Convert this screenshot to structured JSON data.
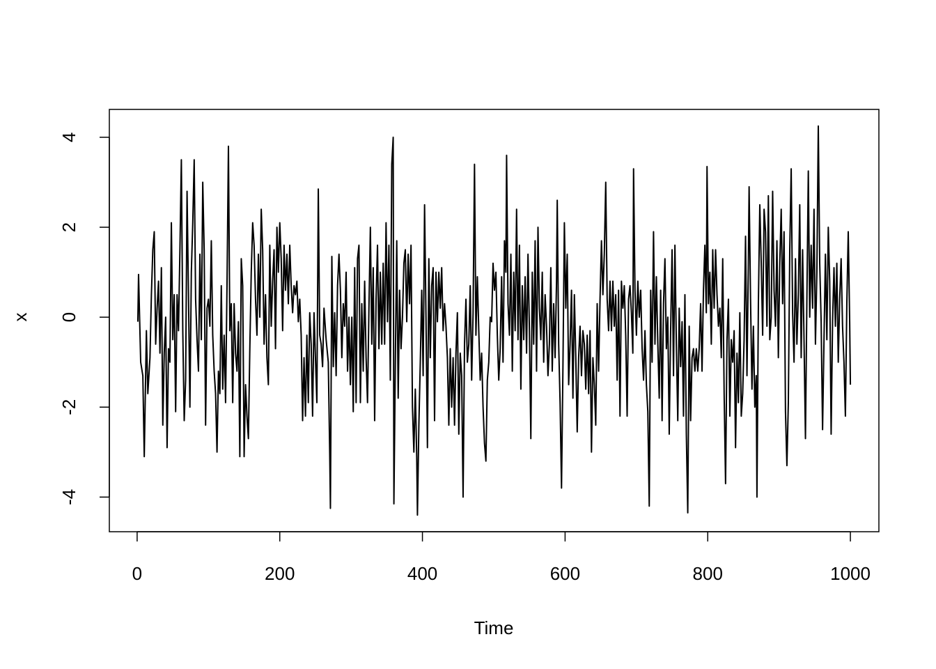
{
  "chart_data": {
    "type": "line",
    "xlabel": "Time",
    "ylabel": "x",
    "color": "#000000",
    "xlim": [
      -38.96,
      1039.96
    ],
    "ylim": [
      -4.77,
      4.62
    ],
    "xticks": [
      0,
      200,
      400,
      600,
      800,
      1000
    ],
    "yticks": [
      -4,
      -2,
      0,
      2,
      4
    ],
    "x": [
      1,
      2,
      5,
      8,
      10,
      13,
      15,
      18,
      20,
      22,
      24,
      26,
      28,
      30,
      32,
      34,
      36,
      38,
      40,
      42,
      44,
      46,
      48,
      50,
      52,
      54,
      56,
      58,
      60,
      62,
      64,
      66,
      68,
      70,
      72,
      74,
      76,
      78,
      80,
      82,
      84,
      86,
      88,
      90,
      92,
      94,
      96,
      98,
      100,
      102,
      104,
      106,
      108,
      110,
      112,
      114,
      116,
      118,
      120,
      122,
      124,
      126,
      128,
      130,
      132,
      134,
      136,
      138,
      140,
      142,
      144,
      146,
      148,
      150,
      152,
      154,
      156,
      158,
      160,
      162,
      164,
      166,
      168,
      170,
      172,
      174,
      176,
      178,
      180,
      182,
      184,
      186,
      188,
      190,
      192,
      194,
      196,
      198,
      200,
      202,
      204,
      206,
      208,
      210,
      212,
      214,
      216,
      218,
      220,
      222,
      224,
      226,
      228,
      230,
      232,
      234,
      236,
      238,
      240,
      242,
      244,
      246,
      248,
      250,
      252,
      254,
      256,
      258,
      260,
      262,
      265,
      268,
      270,
      271,
      273,
      275,
      277,
      279,
      281,
      283,
      285,
      287,
      289,
      291,
      293,
      295,
      297,
      299,
      301,
      303,
      305,
      307,
      309,
      311,
      313,
      315,
      317,
      319,
      321,
      323,
      325,
      327,
      329,
      331,
      333,
      335,
      337,
      339,
      341,
      343,
      345,
      347,
      349,
      351,
      353,
      355,
      357,
      359,
      360,
      362,
      364,
      366,
      368,
      370,
      372,
      374,
      376,
      378,
      380,
      382,
      384,
      386,
      388,
      390,
      392,
      393,
      395,
      397,
      399,
      401,
      403,
      405,
      407,
      409,
      411,
      413,
      415,
      417,
      419,
      421,
      423,
      425,
      427,
      429,
      431,
      433,
      435,
      437,
      439,
      441,
      443,
      445,
      447,
      449,
      451,
      453,
      455,
      457,
      459,
      461,
      463,
      465,
      467,
      469,
      471,
      473,
      475,
      477,
      479,
      481,
      483,
      485,
      487,
      489,
      491,
      493,
      495,
      497,
      499,
      501,
      503,
      505,
      507,
      509,
      511,
      513,
      515,
      517,
      518,
      520,
      522,
      524,
      526,
      528,
      530,
      532,
      534,
      536,
      538,
      540,
      542,
      544,
      546,
      548,
      550,
      552,
      554,
      556,
      558,
      560,
      562,
      564,
      566,
      568,
      570,
      572,
      574,
      576,
      578,
      580,
      582,
      584,
      586,
      588,
      589,
      591,
      593,
      595,
      597,
      599,
      601,
      603,
      605,
      607,
      609,
      611,
      613,
      615,
      617,
      619,
      621,
      623,
      625,
      627,
      629,
      631,
      633,
      635,
      637,
      639,
      641,
      643,
      645,
      647,
      649,
      651,
      653,
      655,
      657,
      659,
      661,
      663,
      665,
      667,
      669,
      671,
      673,
      675,
      677,
      679,
      681,
      683,
      685,
      687,
      689,
      691,
      693,
      695,
      696,
      698,
      700,
      702,
      704,
      706,
      708,
      710,
      712,
      714,
      716,
      718,
      720,
      722,
      724,
      726,
      728,
      730,
      732,
      734,
      736,
      738,
      740,
      742,
      744,
      746,
      748,
      750,
      752,
      754,
      756,
      758,
      760,
      762,
      764,
      766,
      768,
      770,
      772,
      774,
      776,
      778,
      780,
      782,
      784,
      786,
      788,
      790,
      792,
      794,
      796,
      798,
      799,
      801,
      803,
      805,
      807,
      809,
      811,
      813,
      815,
      817,
      819,
      821,
      823,
      825,
      827,
      829,
      831,
      833,
      835,
      837,
      839,
      841,
      843,
      845,
      847,
      849,
      851,
      853,
      855,
      857,
      858,
      860,
      862,
      864,
      866,
      868,
      869,
      871,
      873,
      875,
      877,
      879,
      881,
      883,
      885,
      887,
      889,
      891,
      893,
      895,
      897,
      899,
      901,
      903,
      905,
      907,
      909,
      911,
      913,
      915,
      917,
      919,
      921,
      923,
      925,
      927,
      929,
      931,
      933,
      935,
      937,
      939,
      941,
      943,
      945,
      947,
      949,
      951,
      953,
      955,
      957,
      959,
      961,
      963,
      965,
      967,
      969,
      971,
      973,
      975,
      977,
      979,
      981,
      983,
      985,
      987,
      989,
      991,
      993,
      995,
      997,
      999,
      1000
    ],
    "values": [
      -0.1,
      0.95,
      -1.0,
      -1.3,
      -3.1,
      -0.3,
      -1.7,
      -0.9,
      0.5,
      1.5,
      1.9,
      -0.6,
      0.2,
      0.8,
      -0.8,
      1.1,
      -2.4,
      -0.8,
      0.0,
      -2.9,
      -0.7,
      -1.0,
      2.1,
      -0.5,
      0.5,
      -2.1,
      0.5,
      -0.3,
      1.5,
      3.5,
      -0.3,
      -2.3,
      -1.4,
      2.8,
      0.5,
      -2.0,
      1.0,
      2.1,
      3.5,
      0.4,
      -0.5,
      -1.2,
      1.4,
      -0.5,
      3.0,
      1.5,
      -2.4,
      0.2,
      0.4,
      -0.2,
      1.7,
      -0.4,
      -1.2,
      -1.7,
      -3.0,
      -1.2,
      -1.7,
      0.7,
      -1.6,
      -0.4,
      -1.9,
      0.7,
      3.8,
      -0.3,
      0.3,
      -1.9,
      0.3,
      -0.8,
      -1.2,
      -0.1,
      -3.1,
      1.3,
      0.7,
      -3.1,
      -1.5,
      -2.2,
      -2.7,
      -0.7,
      1.0,
      2.1,
      1.6,
      0.4,
      -0.4,
      1.4,
      0.0,
      2.4,
      1.5,
      -0.6,
      0.5,
      -0.9,
      -1.5,
      1.6,
      -0.2,
      0.8,
      1.5,
      -0.7,
      2.0,
      1.0,
      2.1,
      1.3,
      -0.3,
      1.6,
      0.6,
      1.4,
      0.3,
      1.6,
      0.7,
      0.1,
      0.7,
      0.5,
      0.8,
      -0.1,
      0.4,
      -0.4,
      -2.3,
      -0.9,
      -2.2,
      -0.4,
      -1.9,
      0.1,
      -0.6,
      -2.2,
      0.1,
      -0.9,
      -1.9,
      2.85,
      -0.4,
      -0.6,
      -1.1,
      0.2,
      -0.5,
      -1.0,
      -3.0,
      -4.25,
      1.35,
      -1.1,
      0.1,
      -1.3,
      0.7,
      1.4,
      0.6,
      -0.9,
      0.3,
      -0.2,
      1.0,
      -1.2,
      0.0,
      -1.5,
      0.0,
      -2.1,
      1.1,
      -1.9,
      1.3,
      1.6,
      -1.9,
      0.3,
      -1.2,
      0.8,
      -0.9,
      -1.9,
      0.2,
      2.0,
      -0.6,
      1.1,
      -2.3,
      0.4,
      1.6,
      -0.7,
      1.0,
      -0.6,
      1.2,
      -0.6,
      2.1,
      -0.1,
      1.6,
      -1.4,
      3.4,
      4.0,
      -4.15,
      -1.0,
      1.7,
      -1.8,
      0.6,
      -0.7,
      0.0,
      1.2,
      1.5,
      -0.1,
      1.4,
      0.3,
      1.6,
      -2.0,
      -3.0,
      -1.6,
      -3.1,
      -4.4,
      -2.4,
      -1.0,
      0.6,
      -1.3,
      2.5,
      0.0,
      -2.9,
      1.3,
      -0.9,
      0.7,
      1.1,
      -2.3,
      1.0,
      -0.1,
      1.0,
      0.2,
      1.1,
      -0.3,
      0.3,
      -0.2,
      -0.9,
      -2.4,
      -0.7,
      -2.0,
      -0.9,
      -2.4,
      -0.8,
      0.1,
      -2.6,
      -0.8,
      -1.3,
      -4.0,
      -0.6,
      0.4,
      -1.0,
      -0.6,
      0.7,
      -1.4,
      0.1,
      3.4,
      -0.4,
      0.9,
      -0.3,
      -1.4,
      -0.8,
      -2.0,
      -2.8,
      -3.2,
      -1.4,
      -1.0,
      0.0,
      -0.1,
      1.2,
      0.6,
      1.0,
      -0.4,
      -1.4,
      -0.7,
      0.9,
      -1.0,
      1.7,
      1.0,
      3.6,
      0.3,
      -0.4,
      1.4,
      -1.2,
      1.0,
      -0.3,
      2.4,
      -0.5,
      1.6,
      -1.6,
      0.7,
      -0.5,
      0.9,
      -0.8,
      1.4,
      -0.3,
      -2.7,
      1.0,
      -0.6,
      1.7,
      -1.2,
      2.0,
      0.2,
      -0.5,
      1.0,
      -1.0,
      0.5,
      -0.2,
      -1.3,
      -0.6,
      1.1,
      -1.2,
      0.3,
      -0.9,
      0.8,
      2.6,
      -0.6,
      -1.9,
      -3.8,
      -1.1,
      2.1,
      0.2,
      1.4,
      -1.5,
      -0.6,
      0.6,
      -1.8,
      0.5,
      -0.9,
      -2.55,
      -0.9,
      -0.2,
      -1.3,
      -0.3,
      -0.6,
      -1.6,
      -0.4,
      -1.7,
      -0.3,
      -3.0,
      -0.9,
      -1.5,
      -2.4,
      0.3,
      -1.2,
      0.4,
      1.7,
      0.5,
      1.4,
      3.0,
      0.4,
      -0.3,
      0.8,
      -0.3,
      0.8,
      -0.2,
      0.5,
      -1.4,
      0.6,
      -2.2,
      0.8,
      0.2,
      0.7,
      -0.4,
      -2.2,
      0.4,
      0.7,
      0.1,
      -0.8,
      3.3,
      0.6,
      -0.4,
      0.8,
      0.0,
      0.6,
      -0.7,
      -1.4,
      -0.3,
      -1.5,
      -2.1,
      -4.2,
      0.6,
      -1.0,
      1.9,
      -0.6,
      0.9,
      -0.6,
      -1.8,
      0.6,
      -2.3,
      0.3,
      1.3,
      -0.7,
      0.0,
      -2.6,
      -0.3,
      1.5,
      -1.3,
      1.6,
      -0.6,
      -2.3,
      0.2,
      -1.1,
      -0.1,
      -2.2,
      0.5,
      -2.6,
      -4.35,
      -0.2,
      -2.3,
      -0.9,
      -0.7,
      -1.2,
      -0.7,
      -1.2,
      -0.7,
      0.3,
      -1.2,
      0.6,
      1.6,
      0.1,
      3.35,
      0.3,
      1.0,
      -0.6,
      1.5,
      0.2,
      1.5,
      0.5,
      -0.2,
      0.2,
      -0.9,
      1.3,
      -1.7,
      -3.7,
      -0.5,
      0.4,
      -2.2,
      -0.5,
      -1.0,
      -0.3,
      -2.9,
      -0.8,
      -1.9,
      0.1,
      -2.2,
      -1.7,
      -0.5,
      1.8,
      -1.3,
      1.3,
      2.9,
      0.4,
      -1.6,
      -0.2,
      -2.0,
      -1.3,
      -4.0,
      0.3,
      2.5,
      1.2,
      -0.4,
      2.4,
      1.9,
      -0.2,
      2.7,
      -0.5,
      0.0,
      2.8,
      0.6,
      -0.2,
      1.7,
      -0.9,
      1.2,
      2.4,
      0.3,
      1.9,
      -2.1,
      -3.3,
      -1.9,
      1.5,
      3.3,
      0.1,
      -1.0,
      1.3,
      -0.6,
      0.5,
      2.5,
      -0.9,
      1.5,
      -0.5,
      -2.7,
      0.4,
      3.25,
      0.0,
      1.6,
      0.2,
      2.4,
      -0.6,
      1.0,
      4.25,
      1.2,
      -0.1,
      -2.5,
      -0.5,
      1.4,
      -0.5,
      2.0,
      0.8,
      -2.6,
      -0.1,
      1.1,
      -0.2,
      1.2,
      -1.0,
      0.4,
      1.3,
      -0.2,
      -1.0,
      -2.2,
      0.3,
      1.9,
      -0.1,
      -1.5
    ]
  }
}
